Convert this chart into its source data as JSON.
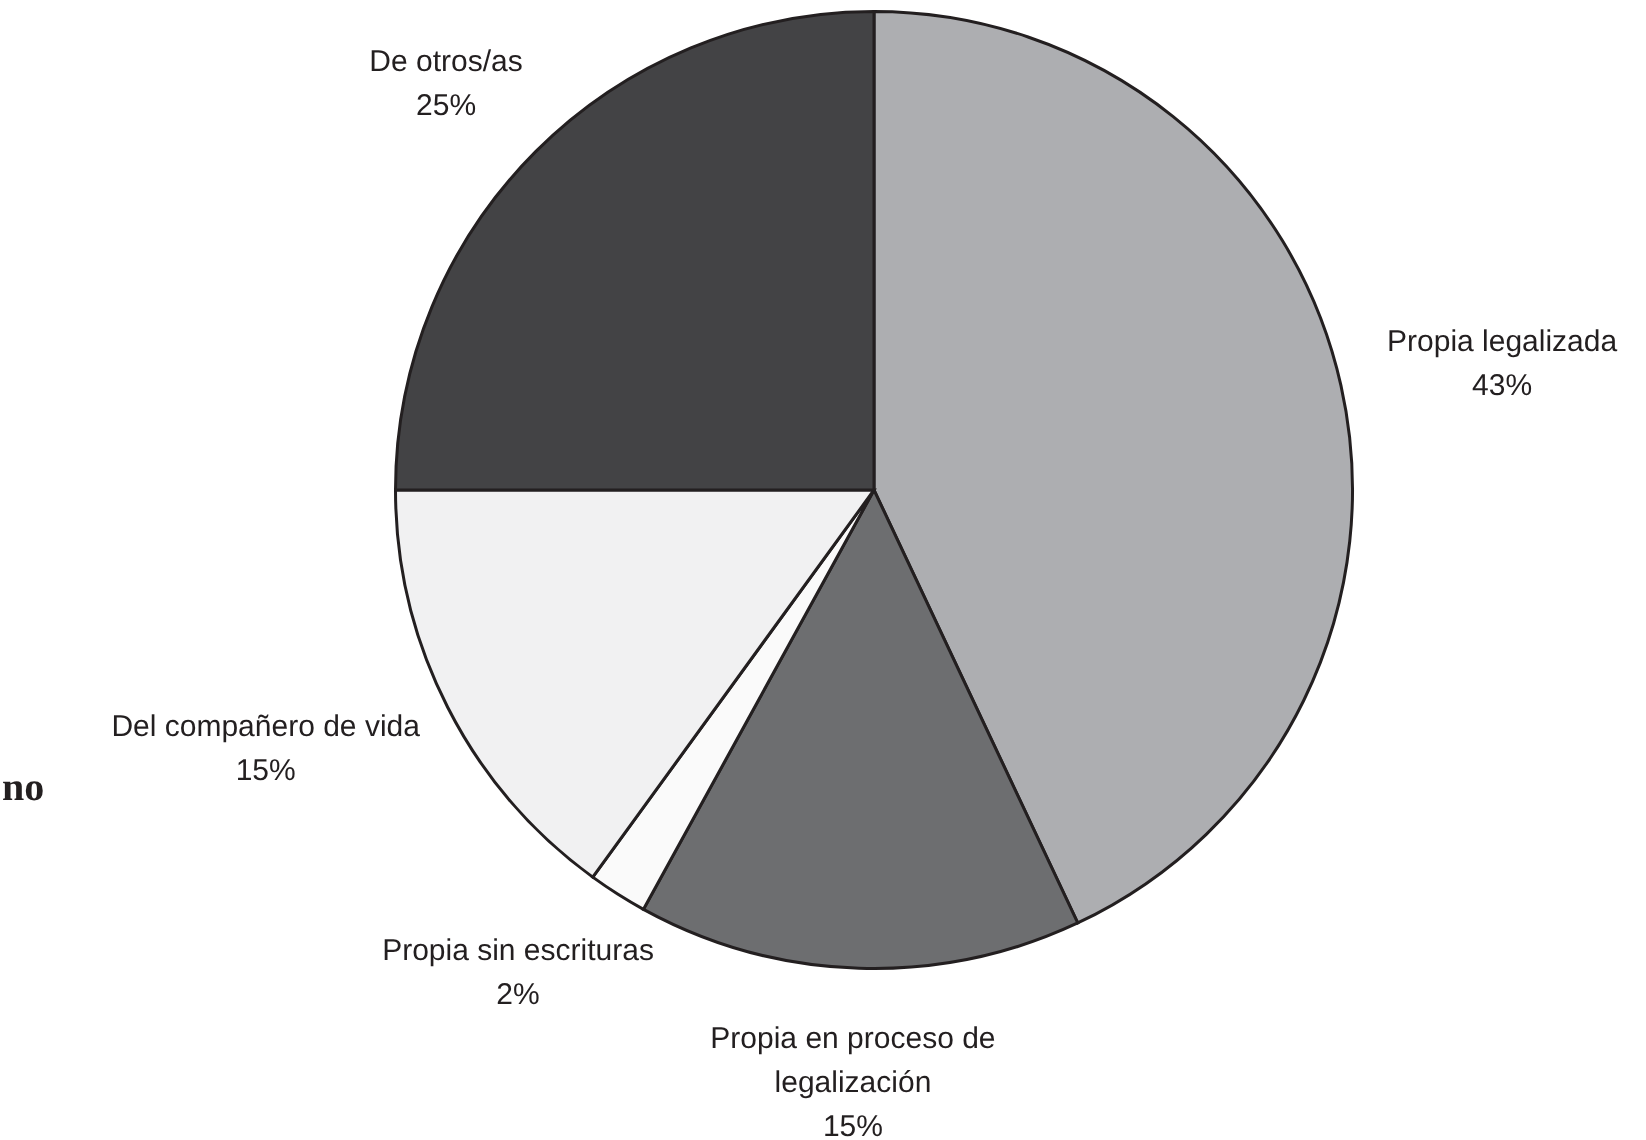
{
  "chart_data": {
    "type": "pie",
    "categories": [
      "Propia legalizada",
      "Propia en proceso de legalización",
      "Propia sin escrituras",
      "Del compañero de vida",
      "De otros/as"
    ],
    "values": [
      43,
      15,
      2,
      15,
      25
    ],
    "colors": [
      "#adaeb1",
      "#6d6e70",
      "#fafafa",
      "#f1f1f2",
      "#434345"
    ],
    "value_labels": [
      "43%",
      "15%",
      "2%",
      "15%",
      "25%"
    ],
    "annotations": [
      "no"
    ]
  }
}
